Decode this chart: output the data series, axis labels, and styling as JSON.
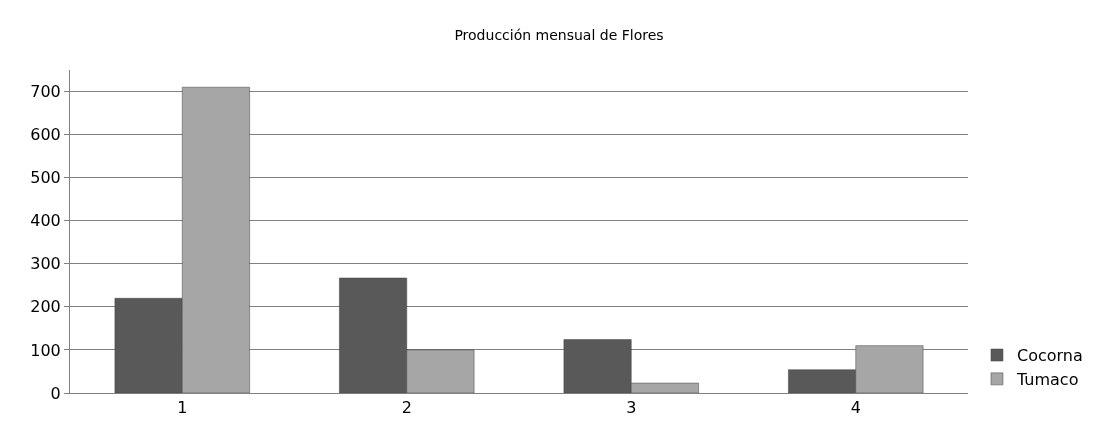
{
  "chart_data": {
    "type": "bar",
    "title": "Producción mensual de Flores",
    "categories": [
      "1",
      "2",
      "3",
      "4"
    ],
    "series": [
      {
        "name": "Cocorna",
        "color": "#595959",
        "values": [
          220,
          267,
          124,
          54
        ]
      },
      {
        "name": "Tumaco",
        "color": "#a6a6a6",
        "values": [
          710,
          100,
          23,
          110
        ]
      }
    ],
    "ylim": [
      0,
      750
    ],
    "yticks": [
      0,
      100,
      200,
      300,
      400,
      500,
      600,
      700
    ],
    "grid": "y",
    "legend": "right"
  }
}
